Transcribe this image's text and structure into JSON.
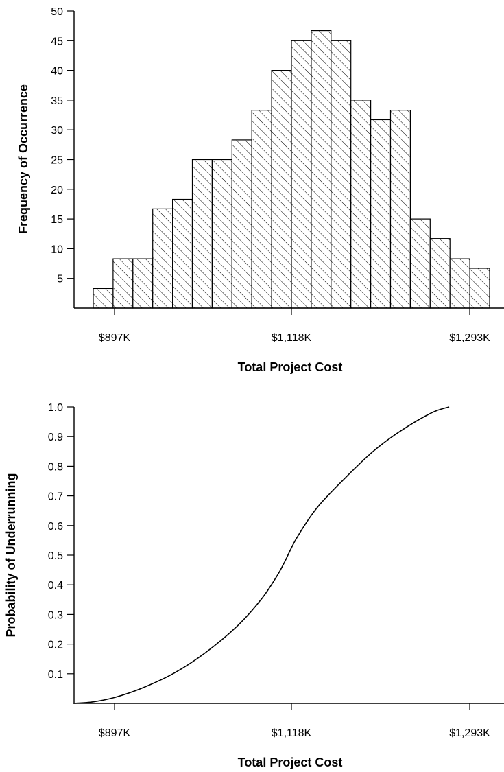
{
  "chart_data": [
    {
      "type": "bar",
      "title": "",
      "xlabel": "Total Project Cost",
      "ylabel": "Frequency of Occurrence",
      "ylim": [
        0,
        50
      ],
      "yticks": [
        5,
        10,
        15,
        20,
        25,
        30,
        35,
        40,
        45,
        50
      ],
      "xtick_labels": [
        "$897K",
        "$1,118K",
        "$1,293K"
      ],
      "grid": false,
      "pattern": "diagonal-hatch",
      "values": [
        3.3,
        8.3,
        8.3,
        16.7,
        18.3,
        25,
        25,
        28.3,
        33.3,
        40,
        45,
        46.7,
        45,
        35,
        31.7,
        33.3,
        15,
        11.7,
        8.3,
        6.7
      ]
    },
    {
      "type": "line",
      "title": "",
      "xlabel": "Total Project Cost",
      "ylabel": "Probability of Underrunning",
      "ylim": [
        0,
        1.0
      ],
      "yticks": [
        "0.1",
        "0.2",
        "0.3",
        "0.4",
        "0.5",
        "0.6",
        "0.7",
        "0.8",
        "0.9",
        "1.0"
      ],
      "xtick_labels": [
        "$897K",
        "$1,118K",
        "$1,293K"
      ],
      "grid": false,
      "series": [
        {
          "x": [
            845,
            870,
            897,
            930,
            970,
            1010,
            1050,
            1080,
            1100,
            1110,
            1125,
            1150,
            1185,
            1220,
            1255,
            1293,
            1315
          ],
          "y": [
            0,
            0.005,
            0.02,
            0.05,
            0.1,
            0.17,
            0.26,
            0.35,
            0.43,
            0.48,
            0.56,
            0.66,
            0.76,
            0.85,
            0.92,
            0.98,
            1.0
          ]
        }
      ]
    }
  ]
}
